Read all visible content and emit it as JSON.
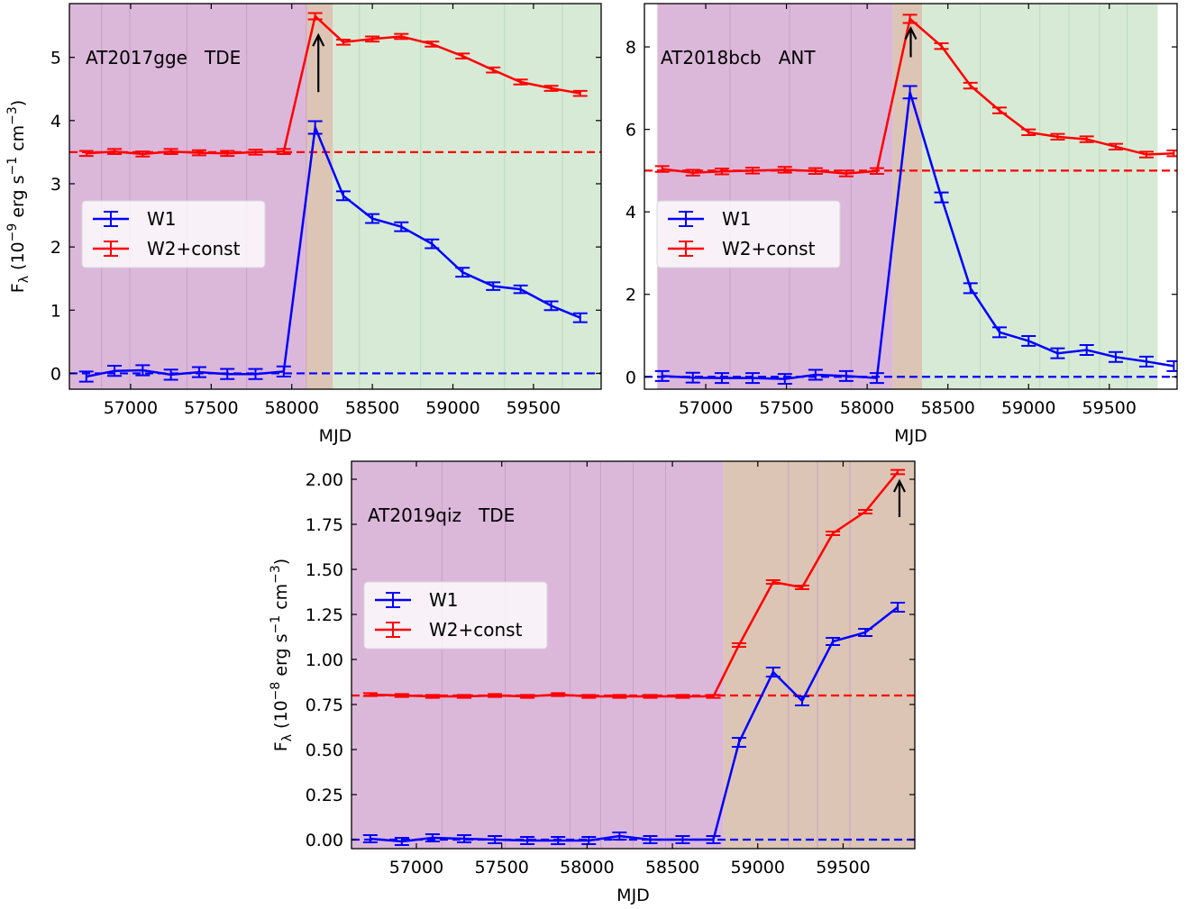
{
  "chart_data": [
    {
      "type": "line",
      "title": "",
      "annotation": {
        "name": "AT2017gge",
        "class": "TDE"
      },
      "xlabel": "MJD",
      "ylabel": {
        "pre": "F",
        "sub": "λ",
        "text": " (10",
        "exp": "−9",
        "unit1": " erg s",
        "exp2": "−1",
        "unit2": " cm",
        "exp3": "−3",
        "close": ")"
      },
      "xlim": [
        56620,
        59920
      ],
      "ylim": [
        -0.25,
        5.85
      ],
      "xticks": [
        57000,
        57500,
        58000,
        58500,
        59000,
        59500
      ],
      "xtick_labels": [
        "57000",
        "57500",
        "58000",
        "58500",
        "59000",
        "59500"
      ],
      "yticks": [
        0,
        1,
        2,
        3,
        4,
        5
      ],
      "ytick_labels": [
        "0",
        "1",
        "2",
        "3",
        "4",
        "5"
      ],
      "shading": [
        {
          "from": 56620,
          "to": 58090,
          "color": "#dbb7da"
        },
        {
          "from": 58090,
          "to": 58255,
          "color": "#dcc5b5"
        },
        {
          "from": 58255,
          "to": 59920,
          "color": "#d7ead6"
        }
      ],
      "vlines": [
        56820,
        56995,
        57350,
        57720,
        58090,
        58420,
        58800,
        59320,
        59680
      ],
      "hlines": [
        {
          "y": 3.5,
          "color": "#ff0000"
        },
        {
          "y": 0,
          "color": "#0000ff"
        }
      ],
      "arrow": {
        "x": 58165,
        "y_from": 4.45,
        "y_to": 5.35
      },
      "legend": {
        "location": "center-left",
        "entries": [
          "W1",
          "W2+const"
        ]
      },
      "series": [
        {
          "name": "W1",
          "color": "#0000ff",
          "x": [
            56725,
            56900,
            57075,
            57250,
            57425,
            57600,
            57775,
            57950,
            58145,
            58320,
            58500,
            58680,
            58870,
            59060,
            59250,
            59420,
            59610,
            59790
          ],
          "y": [
            -0.05,
            0.04,
            0.05,
            -0.02,
            0.02,
            -0.01,
            -0.01,
            0.03,
            3.89,
            2.81,
            2.45,
            2.32,
            2.05,
            1.6,
            1.38,
            1.33,
            1.07,
            0.88
          ],
          "err": [
            0.08,
            0.08,
            0.08,
            0.08,
            0.08,
            0.08,
            0.08,
            0.08,
            0.1,
            0.07,
            0.07,
            0.07,
            0.07,
            0.07,
            0.06,
            0.06,
            0.07,
            0.07
          ]
        },
        {
          "name": "W2+const",
          "color": "#ff0000",
          "x": [
            56725,
            56900,
            57075,
            57250,
            57425,
            57600,
            57775,
            57950,
            58145,
            58320,
            58500,
            58680,
            58870,
            59060,
            59250,
            59420,
            59610,
            59790
          ],
          "y": [
            3.48,
            3.51,
            3.47,
            3.51,
            3.49,
            3.48,
            3.5,
            3.51,
            5.65,
            5.24,
            5.29,
            5.33,
            5.21,
            5.02,
            4.8,
            4.61,
            4.51,
            4.43
          ],
          "err": [
            0.04,
            0.04,
            0.04,
            0.04,
            0.04,
            0.04,
            0.04,
            0.04,
            0.05,
            0.04,
            0.04,
            0.04,
            0.04,
            0.04,
            0.04,
            0.04,
            0.04,
            0.04
          ]
        }
      ]
    },
    {
      "type": "line",
      "title": "",
      "annotation": {
        "name": "AT2018bcb",
        "class": "ANT"
      },
      "xlabel": "MJD",
      "ylabel": null,
      "xlim": [
        56620,
        59920
      ],
      "ylim": [
        -0.3,
        9.05
      ],
      "xticks": [
        57000,
        57500,
        58000,
        58500,
        59000,
        59500
      ],
      "xtick_labels": [
        "57000",
        "57500",
        "58000",
        "58500",
        "59000",
        "59500"
      ],
      "yticks": [
        0,
        2,
        4,
        6,
        8
      ],
      "ytick_labels": [
        "0",
        "2",
        "4",
        "6",
        "8"
      ],
      "shading": [
        {
          "from": 56700,
          "to": 58160,
          "color": "#dbb7da"
        },
        {
          "from": 58160,
          "to": 58340,
          "color": "#dcc5b5"
        },
        {
          "from": 58340,
          "to": 59800,
          "color": "#d7ead6"
        }
      ],
      "vlines": [
        57150,
        57520,
        57900,
        58700,
        59070,
        59250,
        59440,
        59610
      ],
      "hlines": [
        {
          "y": 5.0,
          "color": "#ff0000"
        },
        {
          "y": 0,
          "color": "#0000ff"
        }
      ],
      "arrow": {
        "x": 58270,
        "y_from": 7.75,
        "y_to": 8.45
      },
      "legend": {
        "location": "center-left",
        "entries": [
          "W1",
          "W2+const"
        ]
      },
      "series": [
        {
          "name": "W1",
          "color": "#0000ff",
          "x": [
            56730,
            56920,
            57100,
            57290,
            57490,
            57680,
            57870,
            58060,
            58265,
            58460,
            58640,
            58820,
            59000,
            59180,
            59360,
            59540,
            59730,
            59900
          ],
          "y": [
            0.02,
            -0.02,
            -0.03,
            -0.03,
            -0.05,
            0.05,
            0.02,
            -0.03,
            6.9,
            4.35,
            2.15,
            1.08,
            0.87,
            0.57,
            0.65,
            0.48,
            0.37,
            0.26
          ],
          "err": [
            0.12,
            0.12,
            0.12,
            0.12,
            0.12,
            0.12,
            0.12,
            0.12,
            0.15,
            0.12,
            0.12,
            0.12,
            0.12,
            0.12,
            0.12,
            0.12,
            0.12,
            0.12
          ]
        },
        {
          "name": "W2+const",
          "color": "#ff0000",
          "x": [
            56730,
            56920,
            57100,
            57290,
            57490,
            57680,
            57870,
            58060,
            58265,
            58460,
            58640,
            58820,
            59000,
            59180,
            59360,
            59540,
            59730,
            59900
          ],
          "y": [
            5.04,
            4.95,
            4.98,
            5.0,
            5.02,
            4.99,
            4.93,
            4.99,
            8.68,
            8.02,
            7.06,
            6.46,
            5.93,
            5.82,
            5.76,
            5.58,
            5.39,
            5.42
          ],
          "err": [
            0.07,
            0.07,
            0.07,
            0.07,
            0.07,
            0.07,
            0.07,
            0.07,
            0.1,
            0.07,
            0.07,
            0.07,
            0.07,
            0.07,
            0.07,
            0.07,
            0.07,
            0.07
          ]
        }
      ]
    },
    {
      "type": "line",
      "title": "",
      "annotation": {
        "name": "AT2019qiz",
        "class": "TDE"
      },
      "xlabel": "MJD",
      "ylabel": {
        "pre": "F",
        "sub": "λ",
        "text": " (10",
        "exp": "−8",
        "unit1": " erg s",
        "exp2": "−1",
        "unit2": " cm",
        "exp3": "−3",
        "close": ")"
      },
      "xlim": [
        56620,
        59920
      ],
      "ylim": [
        -0.05,
        2.1
      ],
      "xticks": [
        57000,
        57500,
        58000,
        58500,
        59000,
        59500
      ],
      "xtick_labels": [
        "57000",
        "57500",
        "58000",
        "58500",
        "59000",
        "59500"
      ],
      "yticks": [
        0,
        0.25,
        0.5,
        0.75,
        1.0,
        1.25,
        1.5,
        1.75,
        2.0
      ],
      "ytick_labels": [
        "0.00",
        "0.25",
        "0.50",
        "0.75",
        "1.00",
        "1.25",
        "1.50",
        "1.75",
        "2.00"
      ],
      "shading": [
        {
          "from": 56620,
          "to": 58800,
          "color": "#dbb7da"
        },
        {
          "from": 58800,
          "to": 59920,
          "color": "#dcc5b5"
        }
      ],
      "vlines": [
        57150,
        57520,
        57900,
        58080,
        58270,
        58460,
        59180,
        59350,
        59540
      ],
      "hlines": [
        {
          "y": 0.8,
          "color": "#ff0000"
        },
        {
          "y": 0,
          "color": "#0000ff"
        }
      ],
      "arrow": {
        "x": 59830,
        "y_from": 1.79,
        "y_to": 1.99
      },
      "legend": {
        "location": "center-left",
        "entries": [
          "W1",
          "W2+const"
        ]
      },
      "series": [
        {
          "name": "W1",
          "color": "#0000ff",
          "x": [
            56730,
            56915,
            57095,
            57280,
            57460,
            57650,
            57830,
            58010,
            58190,
            58370,
            58560,
            58740,
            58890,
            59090,
            59260,
            59440,
            59630,
            59820
          ],
          "y": [
            0.005,
            -0.01,
            0.01,
            0.005,
            0.0,
            -0.005,
            -0.005,
            -0.005,
            0.02,
            0.0,
            0.0,
            0.0,
            0.54,
            0.93,
            0.77,
            1.1,
            1.15,
            1.29
          ],
          "err": [
            0.02,
            0.02,
            0.02,
            0.02,
            0.02,
            0.02,
            0.02,
            0.02,
            0.02,
            0.02,
            0.02,
            0.02,
            0.025,
            0.025,
            0.025,
            0.02,
            0.02,
            0.025
          ]
        },
        {
          "name": "W2+const",
          "color": "#ff0000",
          "x": [
            56730,
            56915,
            57095,
            57280,
            57460,
            57650,
            57830,
            58010,
            58190,
            58370,
            58560,
            58740,
            58890,
            59090,
            59260,
            59440,
            59630,
            59820
          ],
          "y": [
            0.805,
            0.8,
            0.795,
            0.795,
            0.8,
            0.795,
            0.805,
            0.795,
            0.795,
            0.795,
            0.795,
            0.795,
            1.08,
            1.43,
            1.4,
            1.7,
            1.82,
            2.04
          ],
          "err": [
            0.008,
            0.008,
            0.008,
            0.008,
            0.008,
            0.008,
            0.008,
            0.008,
            0.008,
            0.008,
            0.008,
            0.008,
            0.01,
            0.01,
            0.01,
            0.01,
            0.01,
            0.012
          ]
        }
      ]
    }
  ]
}
